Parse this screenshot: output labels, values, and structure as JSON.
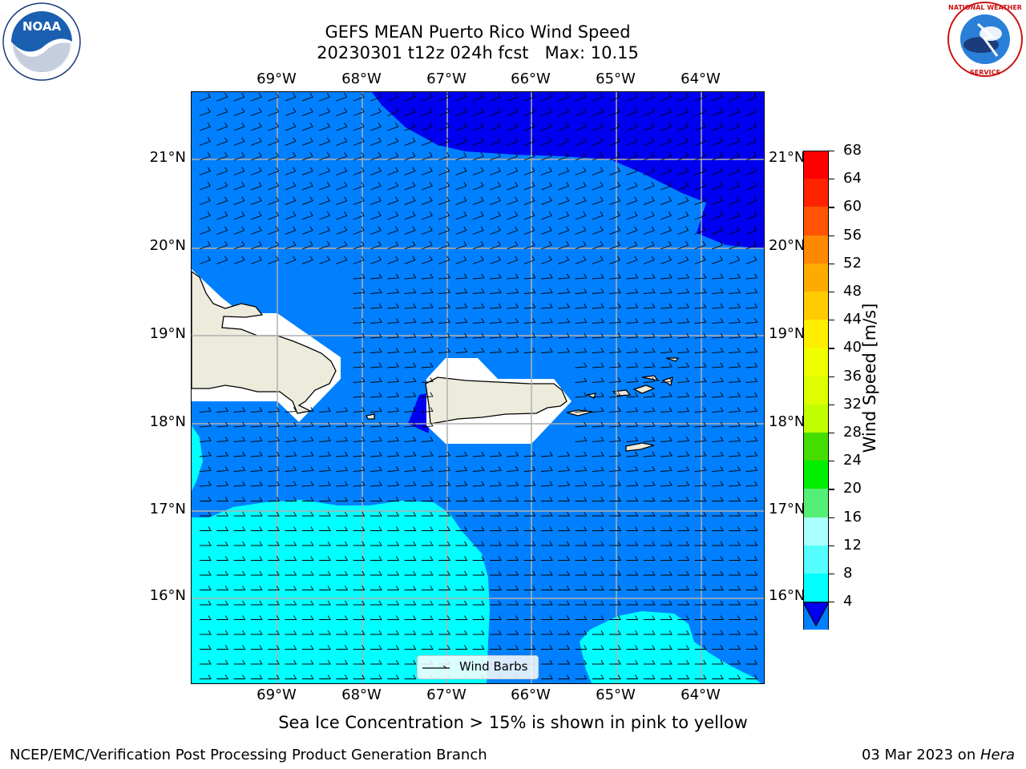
{
  "title": {
    "line1": "GEFS MEAN Puerto Rico Wind Speed",
    "line2": "20230301 t12z 024h fcst   Max: 10.15"
  },
  "logos": {
    "left": "NOAA",
    "left_ring_text": "NATIONAL OCEANIC AND ATMOSPHERIC ADMINISTRATION · U.S. DEPARTMENT OF COMMERCE",
    "right_ring_text": "NATIONAL WEATHER SERVICE"
  },
  "map": {
    "lon_labels": [
      "69°W",
      "68°W",
      "67°W",
      "66°W",
      "65°W",
      "64°W"
    ],
    "lat_labels": [
      "21°N",
      "20°N",
      "19°N",
      "18°N",
      "17°N",
      "16°N"
    ],
    "colors": {
      "band_4_8": "#0080ff",
      "band_8_12": "#00ffff",
      "band_lt4": "#0000f0",
      "land": "#ecebdc",
      "gridline": "#b0b0b0"
    },
    "legend_label": "Wind Barbs"
  },
  "colorbar": {
    "label": "Wind Speed [m/s]",
    "ticks": [
      "68",
      "64",
      "60",
      "56",
      "52",
      "48",
      "44",
      "40",
      "36",
      "32",
      "28",
      "24",
      "20",
      "16",
      "12",
      "8",
      "4"
    ],
    "colors": [
      "#ff0000",
      "#ff2200",
      "#ff5500",
      "#ff8800",
      "#ffaa00",
      "#ffcc00",
      "#ffee00",
      "#f0ff00",
      "#ddff00",
      "#c0ff00",
      "#44dd00",
      "#00ee00",
      "#55ee77",
      "#aaffff",
      "#55ffff",
      "#00ffff",
      "#0080ff"
    ],
    "under_color": "#0000f0"
  },
  "note": "Sea Ice Concentration > 15% is shown in pink to yellow",
  "footer": {
    "left": "NCEP/EMC/Verification Post Processing Product Generation Branch",
    "right_date": "03 Mar 2023 on ",
    "right_host": "Hera"
  }
}
